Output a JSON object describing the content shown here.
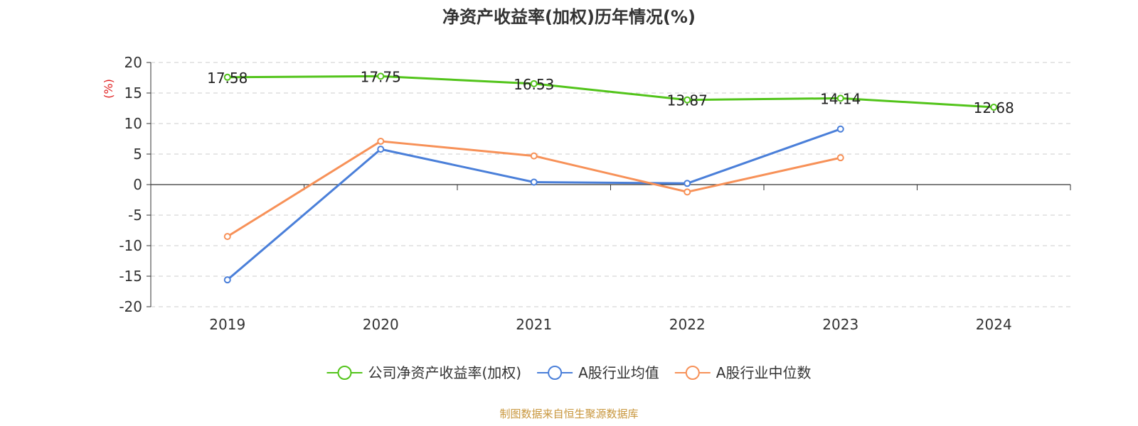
{
  "chart_data": {
    "type": "line",
    "title": "净资产收益率(加权)历年情况(%)",
    "ylabel": "(%)",
    "categories": [
      "2019",
      "2020",
      "2021",
      "2022",
      "2023",
      "2024"
    ],
    "ylim": [
      -20,
      20
    ],
    "yticks": [
      20,
      15,
      10,
      5,
      0,
      -5,
      -10,
      -15,
      -20
    ],
    "grid": true,
    "legend_position": "bottom",
    "series": [
      {
        "name": "公司净资产收益率(加权)",
        "color": "#52c41a",
        "values": [
          17.58,
          17.75,
          16.53,
          13.87,
          14.14,
          12.68
        ],
        "labels": [
          "17.58",
          "17.75",
          "16.53",
          "13.87",
          "14.14",
          "12.68"
        ]
      },
      {
        "name": "A股行业均值",
        "color": "#4a7fd9",
        "values": [
          -15.6,
          5.8,
          0.4,
          0.2,
          9.1,
          null
        ]
      },
      {
        "name": "A股行业中位数",
        "color": "#f79158",
        "values": [
          -8.5,
          7.1,
          4.7,
          -1.2,
          4.4,
          null
        ]
      }
    ]
  },
  "source": "制图数据来自恒生聚源数据库",
  "colors": {
    "ylabel": "#e02020",
    "source": "#c8963c",
    "grid": "#cccccc",
    "axis": "#333333"
  }
}
